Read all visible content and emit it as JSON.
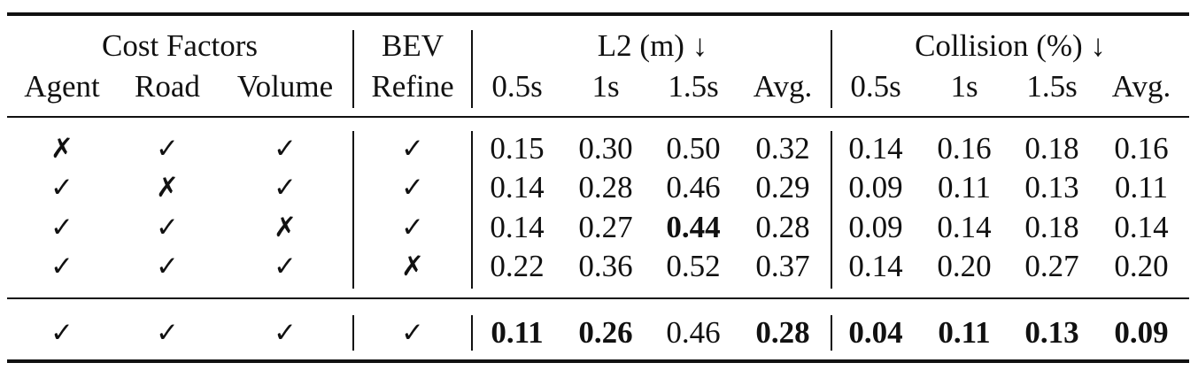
{
  "table": {
    "header_groups": {
      "cost_factors": "Cost Factors",
      "bev": "BEV",
      "l2": "L2 (m) ↓",
      "collision": "Collision (%) ↓"
    },
    "subheaders": {
      "agent": "Agent",
      "road": "Road",
      "volume": "Volume",
      "refine": "Refine",
      "l2_cols": [
        "0.5s",
        "1s",
        "1.5s",
        "Avg."
      ],
      "col_cols": [
        "0.5s",
        "1s",
        "1.5s",
        "Avg."
      ]
    },
    "rows": [
      {
        "marks": [
          "✗",
          "✓",
          "✓",
          "✓"
        ],
        "l2": [
          "0.15",
          "0.30",
          "0.50",
          "0.32"
        ],
        "col": [
          "0.14",
          "0.16",
          "0.18",
          "0.16"
        ]
      },
      {
        "marks": [
          "✓",
          "✗",
          "✓",
          "✓"
        ],
        "l2": [
          "0.14",
          "0.28",
          "0.46",
          "0.29"
        ],
        "col": [
          "0.09",
          "0.11",
          "0.13",
          "0.11"
        ]
      },
      {
        "marks": [
          "✓",
          "✓",
          "✗",
          "✓"
        ],
        "l2": [
          "0.14",
          "0.27",
          "0.44",
          "0.28"
        ],
        "col": [
          "0.09",
          "0.14",
          "0.18",
          "0.14"
        ]
      },
      {
        "marks": [
          "✓",
          "✓",
          "✓",
          "✗"
        ],
        "l2": [
          "0.22",
          "0.36",
          "0.52",
          "0.37"
        ],
        "col": [
          "0.14",
          "0.20",
          "0.27",
          "0.20"
        ]
      }
    ],
    "final_row": {
      "marks": [
        "✓",
        "✓",
        "✓",
        "✓"
      ],
      "l2": [
        "0.11",
        "0.26",
        "0.46",
        "0.28"
      ],
      "col": [
        "0.04",
        "0.11",
        "0.13",
        "0.09"
      ]
    }
  }
}
